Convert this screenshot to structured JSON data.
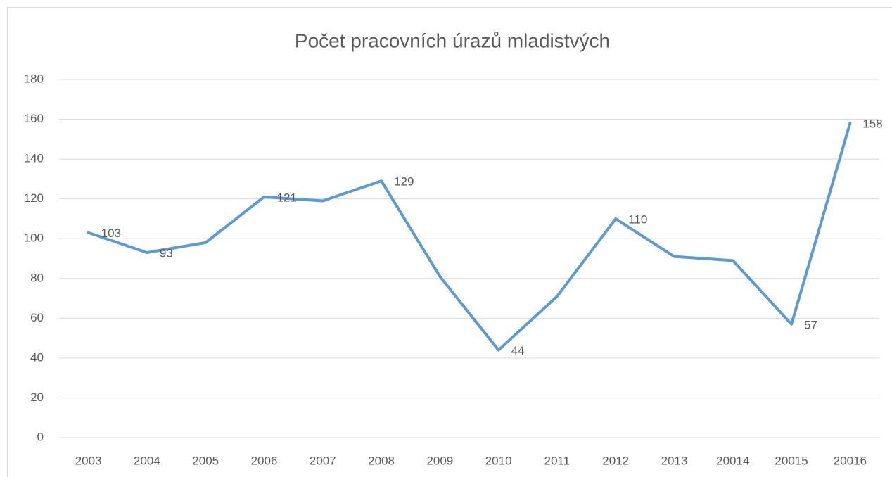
{
  "chart_data": {
    "type": "line",
    "title": "Počet pracovních úrazů mladistvých",
    "categories": [
      "2003",
      "2004",
      "2005",
      "2006",
      "2007",
      "2008",
      "2009",
      "2010",
      "2011",
      "2012",
      "2013",
      "20014",
      "20015",
      "20016"
    ],
    "values": [
      103,
      93,
      98,
      121,
      119,
      129,
      81,
      44,
      71,
      110,
      91,
      89,
      57,
      158
    ],
    "color": "#5b9bd5",
    "labeled_points": [
      0,
      1,
      3,
      5,
      7,
      9,
      12,
      13
    ],
    "ylim": [
      0,
      180
    ],
    "yticks": [
      0,
      20,
      40,
      60,
      80,
      100,
      120,
      140,
      160,
      180
    ],
    "grid": true
  }
}
